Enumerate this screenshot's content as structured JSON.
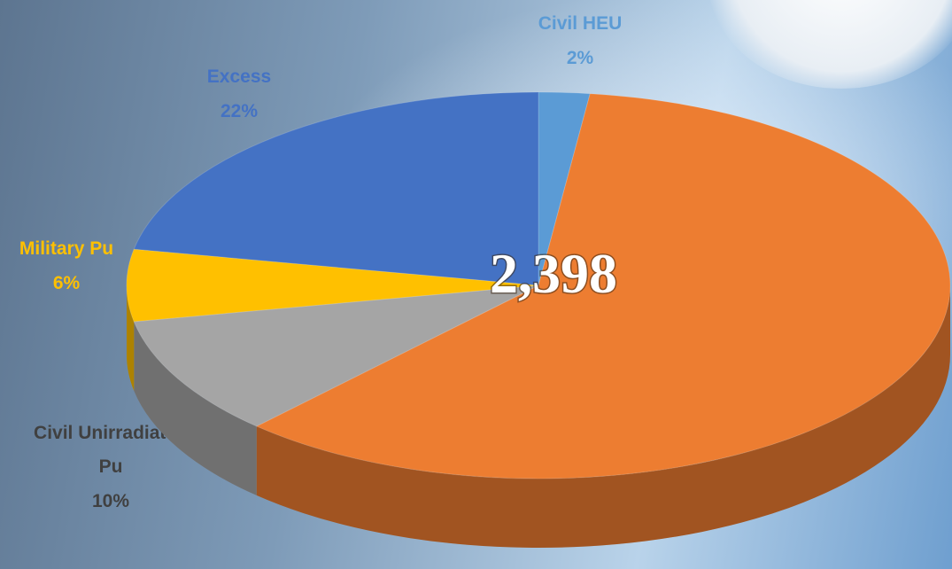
{
  "chart_data": {
    "type": "pie3d",
    "categories": [
      "Civil HEU",
      null,
      "Civil Unirradiated Pu",
      "Military Pu",
      "Excess"
    ],
    "values": [
      2,
      60,
      10,
      6,
      22
    ],
    "value_labels": [
      "2%",
      null,
      "10%",
      "6%",
      "22%"
    ],
    "colors": [
      "#5b9bd5",
      "#ed7d31",
      "#a5a5a5",
      "#ffc000",
      "#4472c4"
    ],
    "label_colors": [
      "#5b9bd5",
      null,
      "#404040",
      "#ffc000",
      "#4472c4"
    ],
    "center_label": "2,398"
  }
}
